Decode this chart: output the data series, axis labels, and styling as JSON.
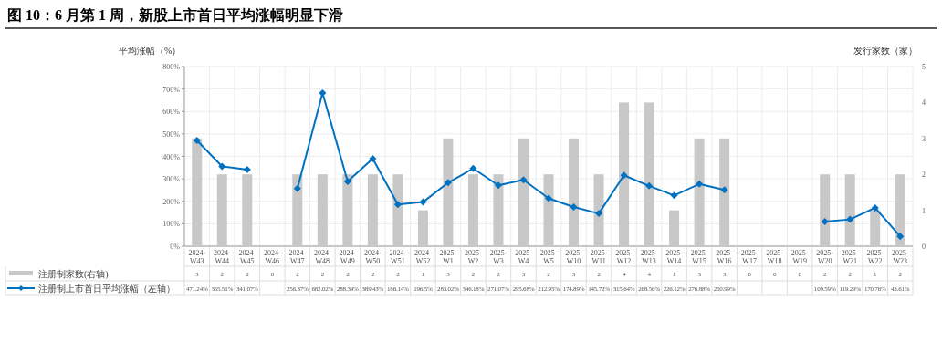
{
  "chart_data": {
    "type": "bar",
    "title": "图 10：6 月第 1 周，新股上市首日平均涨幅明显下滑",
    "ylabel": "平均涨幅（%）",
    "y2label": "发行家数（家）",
    "categories": [
      "2024-W43",
      "2024-W44",
      "2024-W45",
      "2024-W46",
      "2024-W47",
      "2024-W48",
      "2024-W49",
      "2024-W50",
      "2024-W51",
      "2024-W52",
      "2025-W1",
      "2025-W2",
      "2025-W3",
      "2025-W4",
      "2025-W5",
      "2025-W10",
      "2025-W11",
      "2025-W12",
      "2025-W13",
      "2025-W14",
      "2025-W15",
      "2025-W16",
      "2025-W17",
      "2025-W18",
      "2025-W19",
      "2025-W20",
      "2025-W21",
      "2025-W22",
      "2025-W23"
    ],
    "series": [
      {
        "name": "注册制家数(右轴)",
        "axis": "y2",
        "color": "#c8c8c8",
        "values": [
          3,
          2,
          2,
          0,
          2,
          2,
          2,
          2,
          2,
          1,
          3,
          2,
          2,
          3,
          2,
          3,
          2,
          4,
          4,
          1,
          3,
          3,
          0,
          0,
          0,
          2,
          2,
          1,
          2
        ],
        "value_labels": [
          "3",
          "2",
          "2",
          "0",
          "2",
          "2",
          "2",
          "2",
          "2",
          "1",
          "3",
          "2",
          "2",
          "3",
          "2",
          "3",
          "2",
          "4",
          "4",
          "1",
          "3",
          "3",
          "0",
          "0",
          "0",
          "2",
          "2",
          "1",
          "2"
        ]
      },
      {
        "name": "注册制上市首日平均涨幅（左轴）",
        "type": "line",
        "axis": "y",
        "color": "#0070c0",
        "values": [
          471.24,
          355.51,
          341.07,
          null,
          256.37,
          682.02,
          288.39,
          389.43,
          186.14,
          196.5,
          283.02,
          346.18,
          271.07,
          295.68,
          212.95,
          174.89,
          145.72,
          315.64,
          268.56,
          226.12,
          276.88,
          250.99,
          null,
          null,
          null,
          109.59,
          119.29,
          170.76,
          43.61
        ],
        "value_labels": [
          "471.24%",
          "355.51%",
          "341.07%",
          null,
          "256.37%",
          "682.02%",
          "288.39%",
          "389.43%",
          "186.14%",
          "196.5%",
          "283.02%",
          "346.18%",
          "271.07%",
          "295.68%",
          "212.95%",
          "174.89%",
          "145.72%",
          "315.64%",
          "268.56%",
          "226.12%",
          "276.88%",
          "250.99%",
          null,
          null,
          null,
          "109.59%",
          "119.29%",
          "170.76%",
          "43.61%"
        ]
      }
    ],
    "ylim": [
      0,
      800
    ],
    "yticks": [
      {
        "value": 0,
        "label": "0%"
      },
      {
        "value": 100,
        "label": "100%"
      },
      {
        "value": 200,
        "label": "200%"
      },
      {
        "value": 300,
        "label": "300%"
      },
      {
        "value": 400,
        "label": "400%"
      },
      {
        "value": 500,
        "label": "500%"
      },
      {
        "value": 600,
        "label": "600%"
      },
      {
        "value": 700,
        "label": "700%"
      },
      {
        "value": 800,
        "label": "800%"
      }
    ],
    "y2lim": [
      0,
      5
    ],
    "y2ticks": [
      0,
      1,
      2,
      3,
      4,
      5
    ],
    "grid": true,
    "legend": "bottom",
    "marker": "diamond",
    "line_style": "solid"
  }
}
